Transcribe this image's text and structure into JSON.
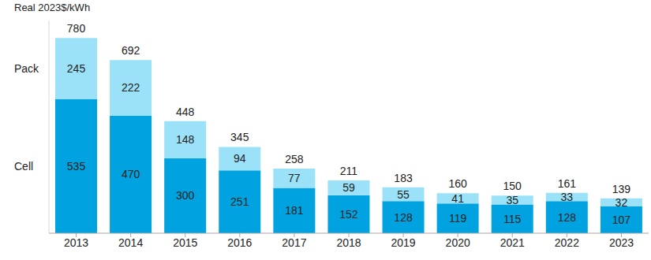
{
  "chart_data": {
    "type": "bar",
    "stacked": true,
    "data_labels": true,
    "tick_labels": "x",
    "y_label": "Real 2023$/kWh",
    "categories": [
      "2013",
      "2014",
      "2015",
      "2016",
      "2017",
      "2018",
      "2019",
      "2020",
      "2021",
      "2022",
      "2023"
    ],
    "ylim": [
      0,
      850
    ],
    "series": [
      {
        "name": "Cell",
        "color": "#00a3e0",
        "values": [
          535,
          470,
          300,
          251,
          181,
          152,
          128,
          119,
          115,
          128,
          107
        ]
      },
      {
        "name": "Pack",
        "color": "#9be2f8",
        "values": [
          245,
          222,
          148,
          94,
          77,
          59,
          55,
          41,
          35,
          33,
          32
        ]
      }
    ],
    "totals": [
      780,
      692,
      448,
      345,
      258,
      211,
      183,
      160,
      150,
      161,
      139
    ]
  }
}
